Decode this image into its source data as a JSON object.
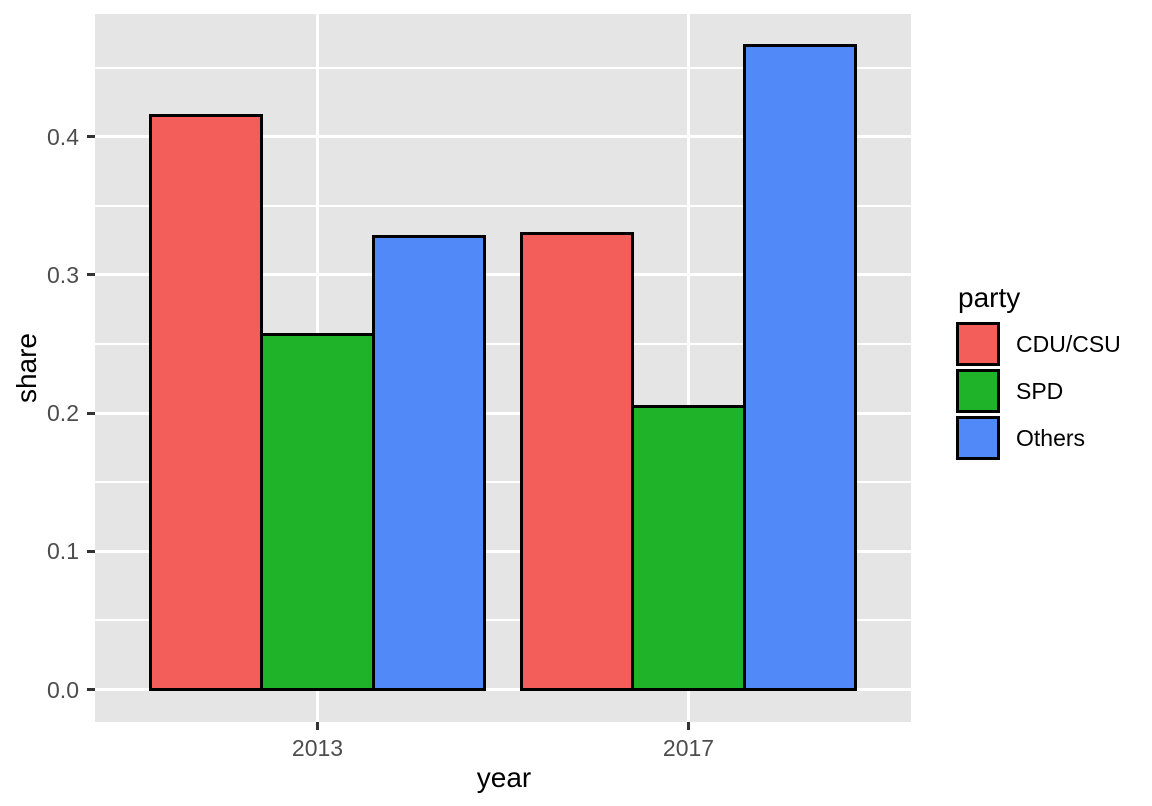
{
  "chart_data": {
    "type": "bar",
    "title": "",
    "xlabel": "year",
    "ylabel": "share",
    "categories": [
      "2013",
      "2017"
    ],
    "series": [
      {
        "name": "CDU/CSU",
        "color": "#F35E5B",
        "values": [
          0.415,
          0.33
        ]
      },
      {
        "name": "SPD",
        "color": "#1FB32A",
        "values": [
          0.257,
          0.205
        ]
      },
      {
        "name": "Others",
        "color": "#5189F8",
        "values": [
          0.328,
          0.466
        ]
      }
    ],
    "y_ticks": [
      {
        "value": 0.0,
        "label": "0.0"
      },
      {
        "value": 0.1,
        "label": "0.1"
      },
      {
        "value": 0.2,
        "label": "0.2"
      },
      {
        "value": 0.3,
        "label": "0.3"
      },
      {
        "value": 0.4,
        "label": "0.4"
      }
    ],
    "y_minor": [
      0.05,
      0.15,
      0.25,
      0.35,
      0.45
    ],
    "ylim": [
      -0.023,
      0.489
    ],
    "grid": true,
    "legend": {
      "title": "party",
      "position": "right"
    },
    "colors": {
      "panel_background": "#E5E5E5",
      "gridline": "#FFFFFF",
      "bar_outline": "#000000",
      "tick_mark": "#333333",
      "tick_label": "#4D4D4D",
      "axis_title": "#000000",
      "page_background": "#FFFFFF"
    }
  }
}
